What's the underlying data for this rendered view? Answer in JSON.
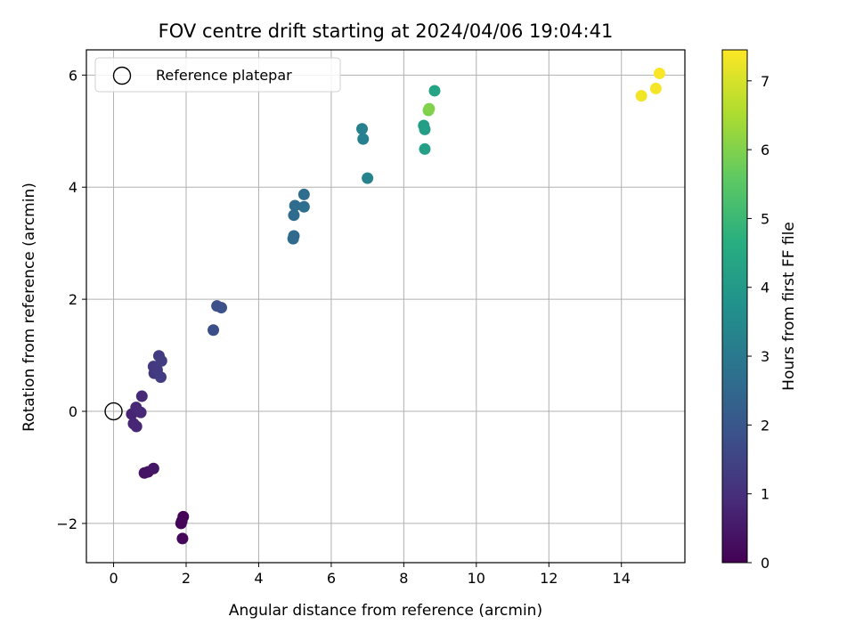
{
  "chart_data": {
    "type": "scatter",
    "title": "FOV centre drift starting at 2024/04/06 19:04:41",
    "xlabel": "Angular distance from reference (arcmin)",
    "ylabel": "Rotation from reference (arcmin)",
    "xlim": [
      -0.75,
      15.75
    ],
    "ylim": [
      -2.7,
      6.45
    ],
    "xticks": [
      0,
      2,
      4,
      6,
      8,
      10,
      12,
      14
    ],
    "yticks": [
      -2,
      0,
      2,
      4,
      6
    ],
    "xtick_labels": [
      "0",
      "2",
      "4",
      "6",
      "8",
      "10",
      "12",
      "14"
    ],
    "ytick_labels": [
      "−2",
      "0",
      "2",
      "4",
      "6"
    ],
    "grid": true,
    "legend": {
      "placement": "upper-left",
      "label": "Reference platepar"
    },
    "reference_point": {
      "x": 0,
      "y": 0
    },
    "colorbar": {
      "label": "Hours from first FF file",
      "range": [
        0,
        7.45
      ],
      "ticks": [
        0,
        1,
        2,
        3,
        4,
        5,
        6,
        7
      ],
      "tick_labels": [
        "0",
        "1",
        "2",
        "3",
        "4",
        "5",
        "6",
        "7"
      ],
      "colormap": "viridis"
    },
    "points": [
      {
        "x": 1.92,
        "y": -1.88,
        "hours": 0.05
      },
      {
        "x": 1.88,
        "y": -1.96,
        "hours": 0.08
      },
      {
        "x": 1.86,
        "y": -2.0,
        "hours": 0.1
      },
      {
        "x": 1.9,
        "y": -2.27,
        "hours": 0.12
      },
      {
        "x": 0.85,
        "y": -1.1,
        "hours": 0.35
      },
      {
        "x": 0.95,
        "y": -1.08,
        "hours": 0.38
      },
      {
        "x": 1.1,
        "y": -1.02,
        "hours": 0.42
      },
      {
        "x": 0.5,
        "y": -0.05,
        "hours": 0.75
      },
      {
        "x": 0.55,
        "y": -0.22,
        "hours": 0.78
      },
      {
        "x": 0.63,
        "y": -0.27,
        "hours": 0.8
      },
      {
        "x": 0.62,
        "y": 0.07,
        "hours": 0.82
      },
      {
        "x": 0.75,
        "y": -0.02,
        "hours": 0.85
      },
      {
        "x": 0.78,
        "y": 0.27,
        "hours": 0.88
      },
      {
        "x": 1.1,
        "y": 0.8,
        "hours": 1.2
      },
      {
        "x": 1.12,
        "y": 0.68,
        "hours": 1.22
      },
      {
        "x": 1.2,
        "y": 0.74,
        "hours": 1.25
      },
      {
        "x": 1.25,
        "y": 0.99,
        "hours": 1.28
      },
      {
        "x": 1.32,
        "y": 0.9,
        "hours": 1.3
      },
      {
        "x": 1.3,
        "y": 0.61,
        "hours": 1.32
      },
      {
        "x": 2.75,
        "y": 1.45,
        "hours": 1.75
      },
      {
        "x": 2.85,
        "y": 1.88,
        "hours": 1.8
      },
      {
        "x": 2.97,
        "y": 1.85,
        "hours": 1.82
      },
      {
        "x": 4.95,
        "y": 3.08,
        "hours": 2.55
      },
      {
        "x": 4.97,
        "y": 3.13,
        "hours": 2.57
      },
      {
        "x": 4.97,
        "y": 3.5,
        "hours": 2.6
      },
      {
        "x": 5.0,
        "y": 3.67,
        "hours": 2.62
      },
      {
        "x": 5.25,
        "y": 3.87,
        "hours": 2.65
      },
      {
        "x": 5.25,
        "y": 3.65,
        "hours": 2.67
      },
      {
        "x": 6.85,
        "y": 5.04,
        "hours": 3.2
      },
      {
        "x": 6.88,
        "y": 4.86,
        "hours": 3.22
      },
      {
        "x": 7.0,
        "y": 4.16,
        "hours": 3.3
      },
      {
        "x": 8.55,
        "y": 5.1,
        "hours": 4.1
      },
      {
        "x": 8.58,
        "y": 5.03,
        "hours": 4.15
      },
      {
        "x": 8.58,
        "y": 4.68,
        "hours": 4.2
      },
      {
        "x": 8.85,
        "y": 5.72,
        "hours": 4.3
      },
      {
        "x": 8.68,
        "y": 5.37,
        "hours": 5.9
      },
      {
        "x": 8.7,
        "y": 5.4,
        "hours": 6.0
      },
      {
        "x": 14.55,
        "y": 5.63,
        "hours": 7.3
      },
      {
        "x": 14.95,
        "y": 5.76,
        "hours": 7.35
      },
      {
        "x": 15.05,
        "y": 6.03,
        "hours": 7.4
      }
    ]
  }
}
